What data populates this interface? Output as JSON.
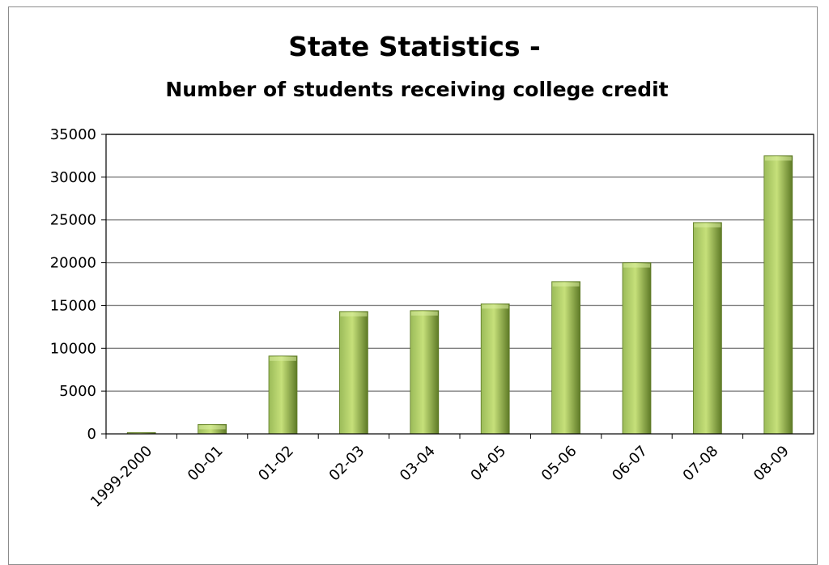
{
  "chart_data": {
    "type": "bar",
    "title": "State Statistics -",
    "subtitle": "Number of students receiving college credit",
    "categories": [
      "1999-2000",
      "00-01",
      "01-02",
      "02-03",
      "03-04",
      "04-05",
      "05-06",
      "06-07",
      "07-08",
      "08-09"
    ],
    "values": [
      150,
      1100,
      9100,
      14300,
      14400,
      15200,
      17800,
      20000,
      24700,
      32500
    ],
    "ylim": [
      0,
      35000
    ],
    "yticks": [
      0,
      5000,
      10000,
      15000,
      20000,
      25000,
      30000,
      35000
    ],
    "grid": true,
    "legend": "none",
    "xlabel": "",
    "ylabel": ""
  },
  "colors": {
    "bar_light": "#c6e07a",
    "bar_mid": "#9bbb59",
    "bar_dark": "#5e7a26",
    "grid": "#808080",
    "axis": "#000000"
  }
}
